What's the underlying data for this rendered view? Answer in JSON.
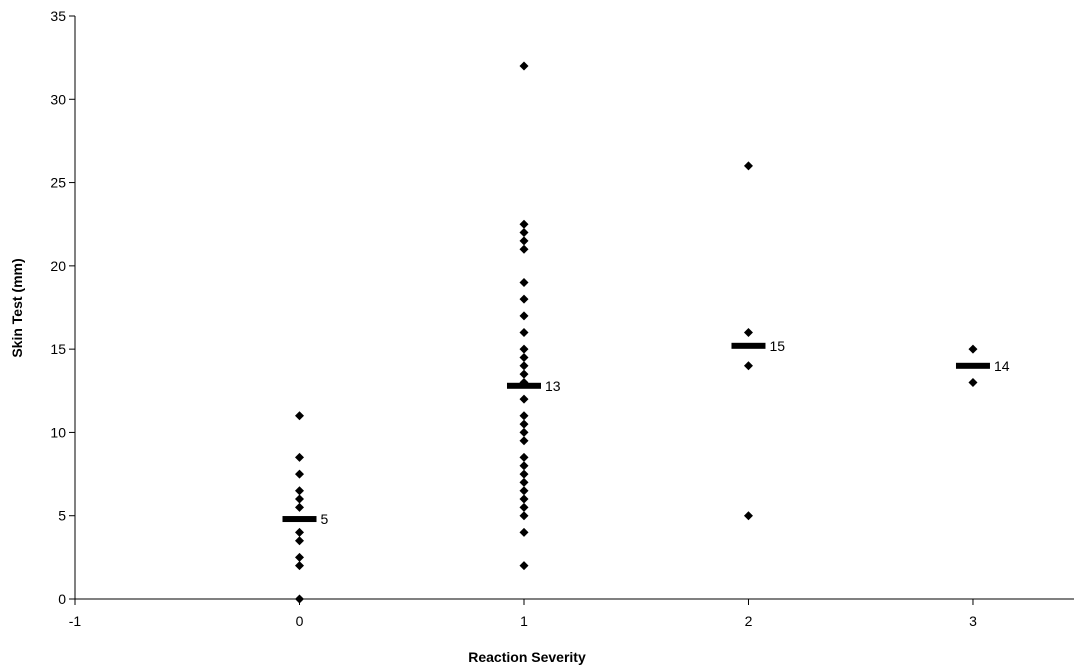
{
  "chart_data": {
    "type": "scatter",
    "title": "",
    "xlabel": "Reaction Severity",
    "ylabel": "Skin Test (mm)",
    "xlim": [
      -1,
      3.45
    ],
    "ylim": [
      0,
      35
    ],
    "x_ticks": [
      -1,
      0,
      1,
      2,
      3
    ],
    "y_ticks": [
      0,
      5,
      10,
      15,
      20,
      25,
      30,
      35
    ],
    "grid": false,
    "legend": "none",
    "colors": {
      "marker": "#000000",
      "axis": "#000000",
      "background": "#ffffff"
    },
    "series": [
      {
        "marker": "diamond",
        "points": [
          [
            0,
            11
          ],
          [
            0,
            8.5
          ],
          [
            0,
            7.5
          ],
          [
            0,
            6.5
          ],
          [
            0,
            6
          ],
          [
            0,
            5.5
          ],
          [
            0,
            4
          ],
          [
            0,
            3.5
          ],
          [
            0,
            2.5
          ],
          [
            0,
            2
          ],
          [
            0,
            0
          ],
          [
            1,
            32
          ],
          [
            1,
            22.5
          ],
          [
            1,
            22
          ],
          [
            1,
            21.5
          ],
          [
            1,
            21
          ],
          [
            1,
            19
          ],
          [
            1,
            18
          ],
          [
            1,
            17
          ],
          [
            1,
            16
          ],
          [
            1,
            15
          ],
          [
            1,
            14.5
          ],
          [
            1,
            14
          ],
          [
            1,
            13.5
          ],
          [
            1,
            13
          ],
          [
            1,
            12
          ],
          [
            1,
            11
          ],
          [
            1,
            10.5
          ],
          [
            1,
            10
          ],
          [
            1,
            9.5
          ],
          [
            1,
            8.5
          ],
          [
            1,
            8
          ],
          [
            1,
            7.5
          ],
          [
            1,
            7
          ],
          [
            1,
            6.5
          ],
          [
            1,
            6
          ],
          [
            1,
            5.5
          ],
          [
            1,
            5
          ],
          [
            1,
            4
          ],
          [
            1,
            2
          ],
          [
            2,
            26
          ],
          [
            2,
            16
          ],
          [
            2,
            14
          ],
          [
            2,
            5
          ],
          [
            3,
            15
          ],
          [
            3,
            13
          ]
        ]
      }
    ],
    "medians": [
      {
        "x": 0,
        "y": 4.8,
        "label": "5"
      },
      {
        "x": 1,
        "y": 12.8,
        "label": "13"
      },
      {
        "x": 2,
        "y": 15.2,
        "label": "15"
      },
      {
        "x": 3,
        "y": 14,
        "label": "14"
      }
    ]
  }
}
